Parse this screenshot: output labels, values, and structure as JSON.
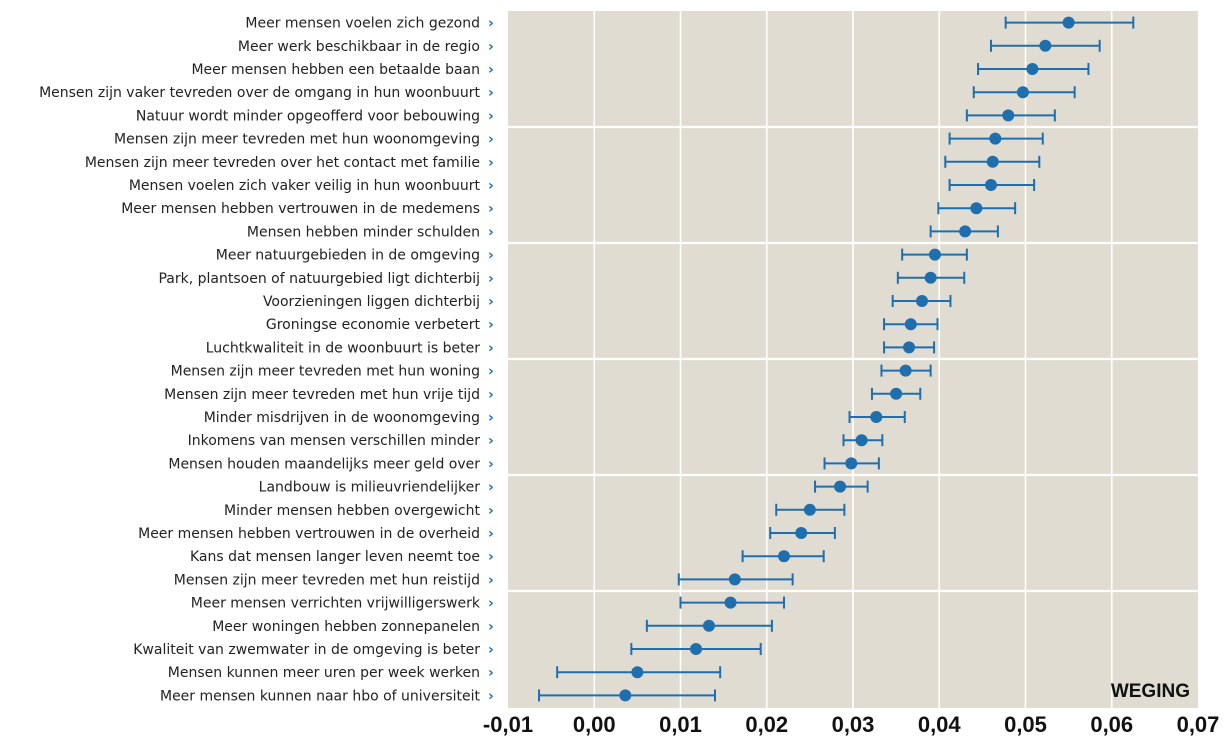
{
  "chart_data": {
    "type": "scatter",
    "subtype": "dot-with-error-bars",
    "title": "",
    "xlabel": "WEGING",
    "ylabel": "",
    "xlim": [
      -0.01,
      0.07
    ],
    "xticks": [
      -0.01,
      0.0,
      0.01,
      0.02,
      0.03,
      0.04,
      0.05,
      0.06,
      0.07
    ],
    "xtick_labels": [
      "-0,01",
      "0,00",
      "0,01",
      "0,02",
      "0,03",
      "0,04",
      "0,05",
      "0,06",
      "0,07"
    ],
    "grid": true,
    "group_size": 5,
    "colors": {
      "point": "#1f6fae",
      "background": "#e0dcd1",
      "grid": "#ffffff",
      "label": "#222222",
      "chevron": "#1f6fae"
    },
    "categories": [
      "Meer mensen voelen zich gezond",
      "Meer werk beschikbaar in de regio",
      "Meer mensen hebben een betaalde baan",
      "Mensen zijn vaker tevreden over de omgang in hun woonbuurt",
      "Natuur wordt minder opgeofferd voor bebouwing",
      "Mensen zijn meer tevreden met hun woonomgeving",
      "Mensen zijn meer tevreden over het contact met familie",
      "Mensen voelen zich vaker veilig in hun woonbuurt",
      "Meer mensen hebben vertrouwen in de medemens",
      "Mensen hebben minder schulden",
      "Meer natuurgebieden in de omgeving",
      "Park, plantsoen of natuurgebied ligt dichterbij",
      "Voorzieningen liggen dichterbij",
      "Groningse economie verbetert",
      "Luchtkwaliteit in de woonbuurt is beter",
      "Mensen zijn meer tevreden met hun woning",
      "Mensen zijn meer tevreden met hun vrije tijd",
      "Minder misdrijven in de woonomgeving",
      "Inkomens van mensen verschillen minder",
      "Mensen houden maandelijks meer geld over",
      "Landbouw is milieuvriendelijker",
      "Minder mensen hebben overgewicht",
      "Meer mensen hebben vertrouwen in de overheid",
      "Kans dat mensen langer leven neemt toe",
      "Mensen zijn meer tevreden met hun reistijd",
      "Meer mensen verrichten vrijwilligerswerk",
      "Meer woningen hebben zonnepanelen",
      "Kwaliteit van zwemwater in de omgeving is beter",
      "Mensen kunnen meer uren per week werken",
      "Meer mensen kunnen naar hbo of universiteit"
    ],
    "values": [
      0.055,
      0.0523,
      0.0508,
      0.0497,
      0.048,
      0.0465,
      0.0462,
      0.046,
      0.0443,
      0.043,
      0.0395,
      0.039,
      0.038,
      0.0367,
      0.0365,
      0.0361,
      0.035,
      0.0327,
      0.031,
      0.0298,
      0.0285,
      0.025,
      0.024,
      0.022,
      0.0163,
      0.0158,
      0.0133,
      0.0118,
      0.005,
      0.0036
    ],
    "lower": [
      0.0477,
      0.046,
      0.0445,
      0.044,
      0.0432,
      0.0412,
      0.0407,
      0.0412,
      0.0399,
      0.039,
      0.0357,
      0.0352,
      0.0346,
      0.0336,
      0.0336,
      0.0333,
      0.0322,
      0.0296,
      0.0289,
      0.0267,
      0.0256,
      0.0211,
      0.0204,
      0.0172,
      0.0098,
      0.01,
      0.0061,
      0.0043,
      -0.0043,
      -0.0064
    ],
    "upper": [
      0.0625,
      0.0586,
      0.0573,
      0.0557,
      0.0534,
      0.052,
      0.0516,
      0.051,
      0.0488,
      0.0468,
      0.0432,
      0.0429,
      0.0413,
      0.0398,
      0.0394,
      0.039,
      0.0378,
      0.036,
      0.0334,
      0.033,
      0.0317,
      0.029,
      0.0279,
      0.0266,
      0.023,
      0.022,
      0.0206,
      0.0193,
      0.0146,
      0.014
    ]
  }
}
